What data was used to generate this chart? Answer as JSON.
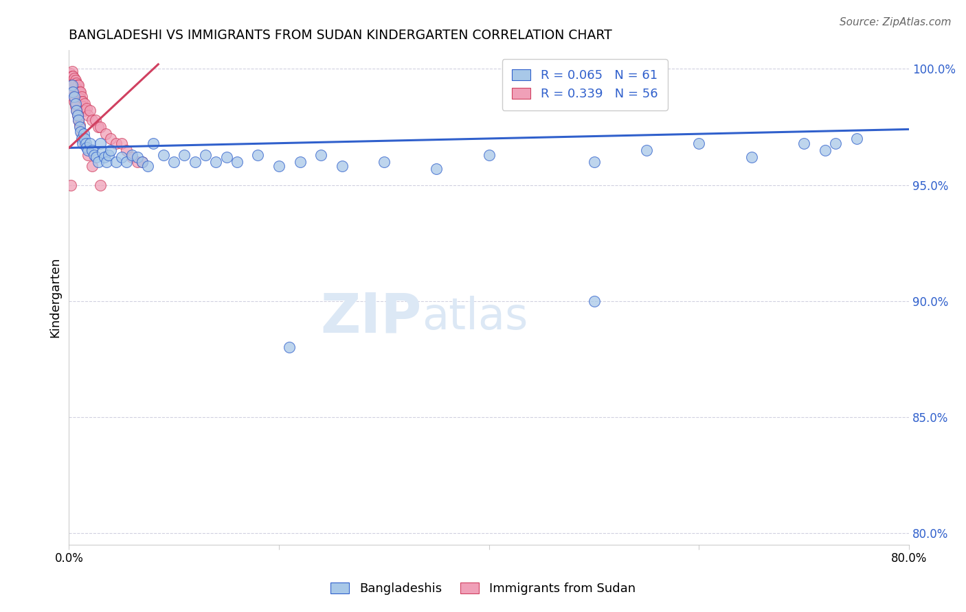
{
  "title": "BANGLADESHI VS IMMIGRANTS FROM SUDAN KINDERGARTEN CORRELATION CHART",
  "source": "Source: ZipAtlas.com",
  "ylabel": "Kindergarten",
  "legend_label1": "Bangladeshis",
  "legend_label2": "Immigrants from Sudan",
  "R1": 0.065,
  "N1": 61,
  "R2": 0.339,
  "N2": 56,
  "xlim": [
    0.0,
    0.8
  ],
  "ylim": [
    0.795,
    1.008
  ],
  "xticks": [
    0.0,
    0.2,
    0.4,
    0.6,
    0.8
  ],
  "xticklabels": [
    "0.0%",
    "",
    "",
    "",
    "80.0%"
  ],
  "yticks": [
    0.8,
    0.85,
    0.9,
    0.95,
    1.0
  ],
  "yticklabels": [
    "80.0%",
    "85.0%",
    "90.0%",
    "95.0%",
    "100.0%"
  ],
  "color_blue": "#a8c8e8",
  "color_pink": "#f0a0b8",
  "color_trendline_blue": "#3060cc",
  "color_trendline_pink": "#d04060",
  "color_text_blue": "#3060cc",
  "color_grid": "#d0d0e0",
  "watermark_color": "#dce8f5",
  "blue_trend_x": [
    0.0,
    0.8
  ],
  "blue_trend_y": [
    0.966,
    0.974
  ],
  "pink_trend_x": [
    0.0,
    0.085
  ],
  "pink_trend_y": [
    0.966,
    1.002
  ],
  "blue_x": [
    0.003,
    0.004,
    0.005,
    0.006,
    0.007,
    0.008,
    0.009,
    0.01,
    0.011,
    0.012,
    0.013,
    0.014,
    0.015,
    0.016,
    0.017,
    0.018,
    0.02,
    0.022,
    0.024,
    0.026,
    0.028,
    0.03,
    0.032,
    0.034,
    0.036,
    0.038,
    0.04,
    0.045,
    0.05,
    0.055,
    0.06,
    0.065,
    0.07,
    0.075,
    0.08,
    0.09,
    0.1,
    0.11,
    0.12,
    0.13,
    0.14,
    0.15,
    0.16,
    0.18,
    0.2,
    0.22,
    0.24,
    0.26,
    0.3,
    0.35,
    0.4,
    0.5,
    0.55,
    0.6,
    0.65,
    0.7,
    0.72,
    0.73,
    0.75,
    0.5,
    0.21
  ],
  "blue_y": [
    0.993,
    0.99,
    0.988,
    0.985,
    0.982,
    0.98,
    0.978,
    0.975,
    0.973,
    0.97,
    0.968,
    0.972,
    0.97,
    0.968,
    0.966,
    0.965,
    0.968,
    0.965,
    0.963,
    0.962,
    0.96,
    0.968,
    0.964,
    0.962,
    0.96,
    0.963,
    0.965,
    0.96,
    0.962,
    0.96,
    0.963,
    0.962,
    0.96,
    0.958,
    0.968,
    0.963,
    0.96,
    0.963,
    0.96,
    0.963,
    0.96,
    0.962,
    0.96,
    0.963,
    0.958,
    0.96,
    0.963,
    0.958,
    0.96,
    0.957,
    0.963,
    0.96,
    0.965,
    0.968,
    0.962,
    0.968,
    0.965,
    0.968,
    0.97,
    0.9,
    0.88
  ],
  "pink_x": [
    0.001,
    0.002,
    0.003,
    0.003,
    0.004,
    0.004,
    0.005,
    0.005,
    0.006,
    0.006,
    0.007,
    0.007,
    0.008,
    0.008,
    0.009,
    0.009,
    0.01,
    0.01,
    0.011,
    0.011,
    0.012,
    0.012,
    0.013,
    0.013,
    0.015,
    0.015,
    0.017,
    0.018,
    0.02,
    0.022,
    0.025,
    0.028,
    0.03,
    0.035,
    0.04,
    0.045,
    0.05,
    0.055,
    0.06,
    0.065,
    0.002,
    0.003,
    0.004,
    0.005,
    0.006,
    0.007,
    0.008,
    0.009,
    0.01,
    0.012,
    0.015,
    0.018,
    0.022,
    0.03,
    0.002,
    0.07
  ],
  "pink_y": [
    0.998,
    0.996,
    0.999,
    0.997,
    0.997,
    0.995,
    0.996,
    0.994,
    0.995,
    0.993,
    0.994,
    0.992,
    0.993,
    0.991,
    0.993,
    0.99,
    0.99,
    0.988,
    0.99,
    0.987,
    0.988,
    0.986,
    0.986,
    0.984,
    0.985,
    0.982,
    0.983,
    0.98,
    0.982,
    0.978,
    0.978,
    0.975,
    0.975,
    0.972,
    0.97,
    0.968,
    0.968,
    0.965,
    0.962,
    0.96,
    0.993,
    0.99,
    0.988,
    0.986,
    0.984,
    0.982,
    0.98,
    0.978,
    0.976,
    0.972,
    0.968,
    0.963,
    0.958,
    0.95,
    0.95,
    0.96
  ]
}
